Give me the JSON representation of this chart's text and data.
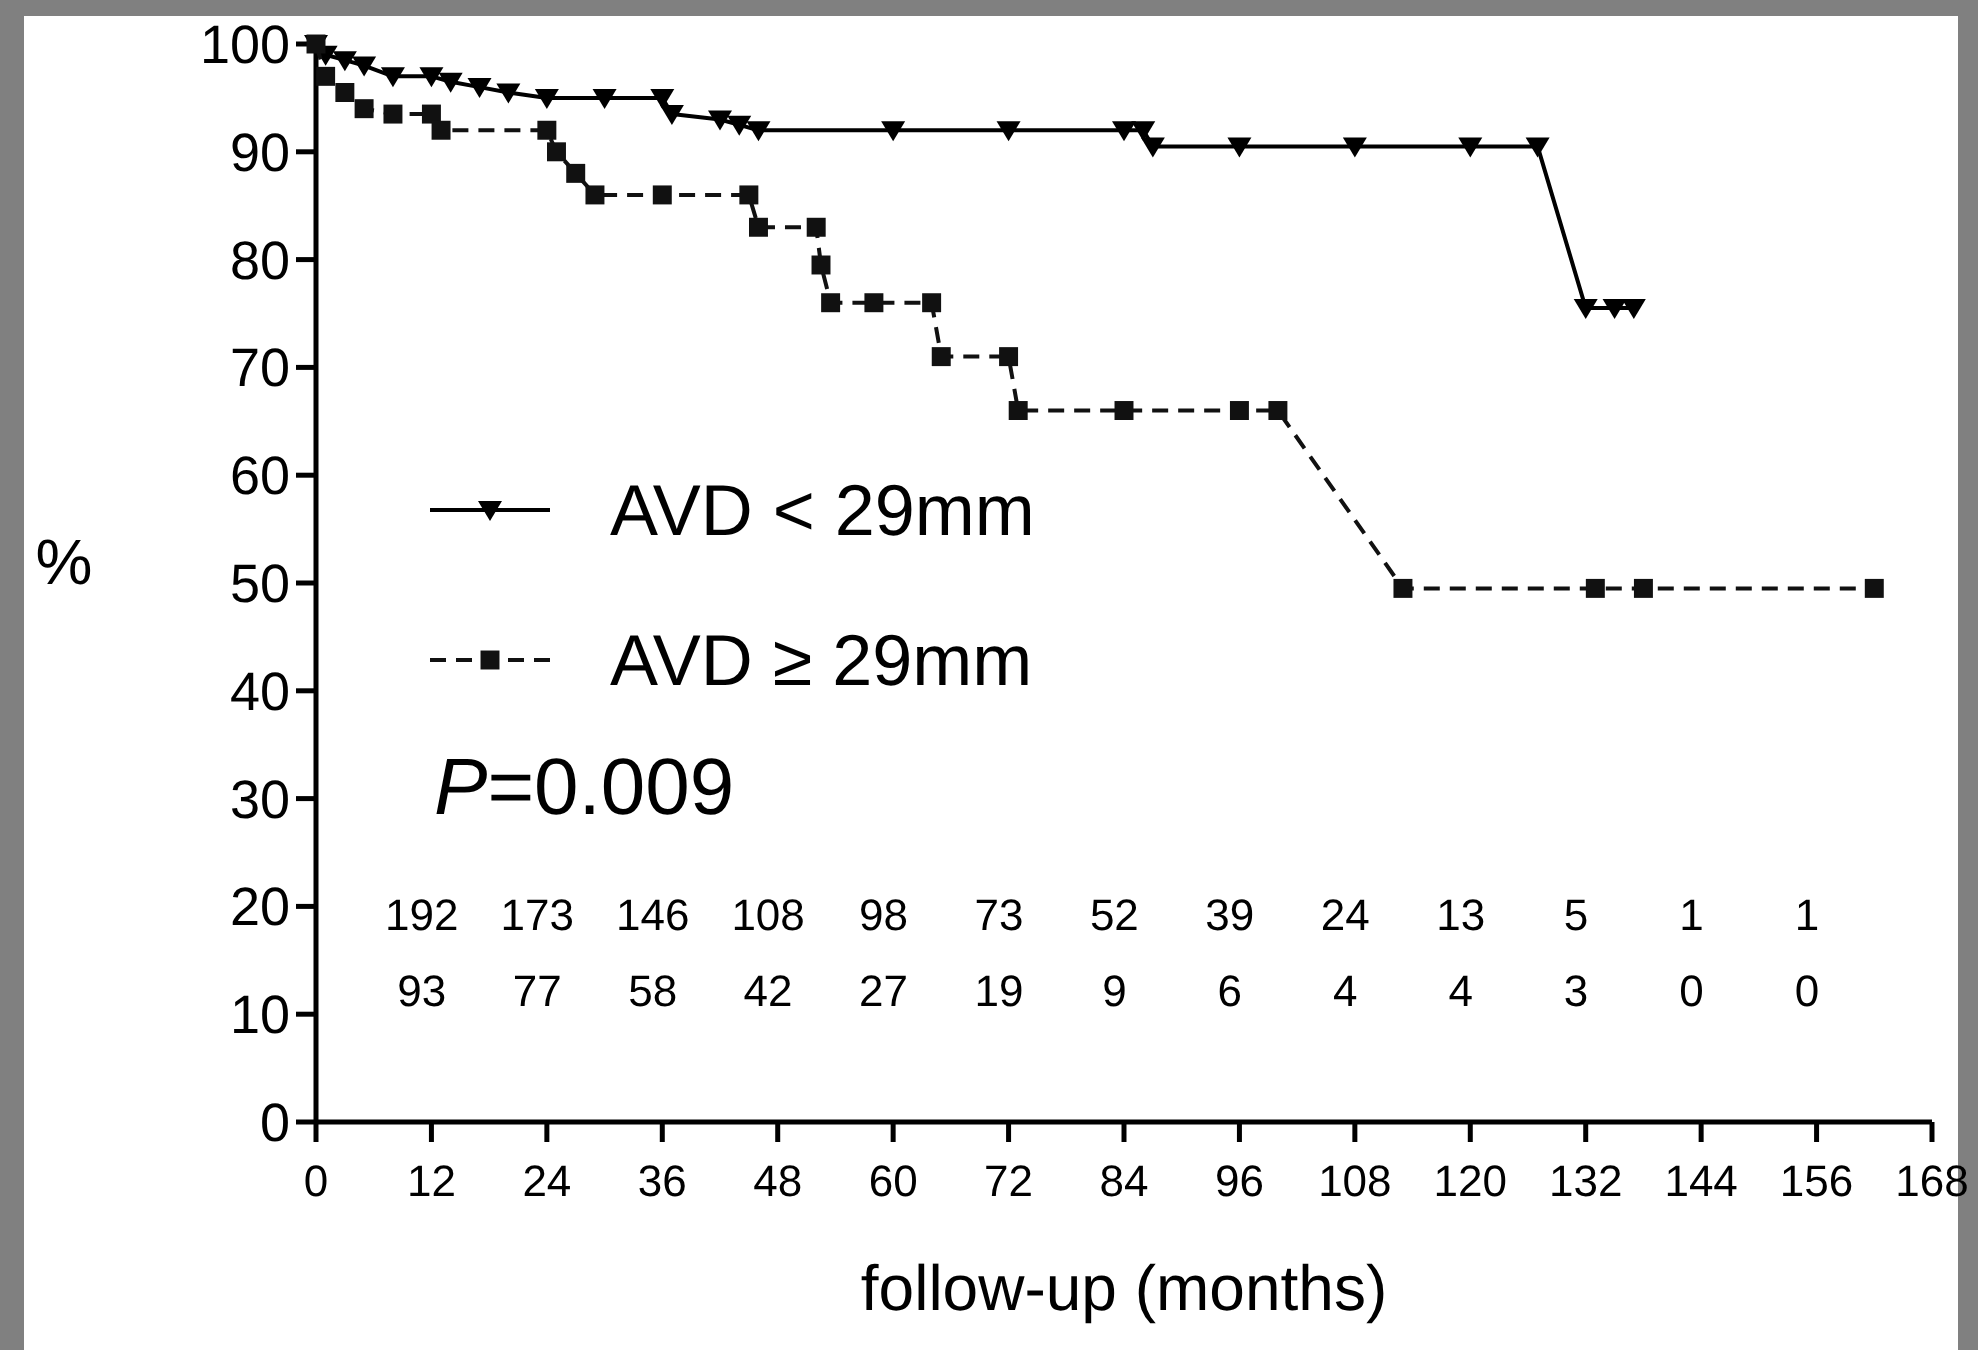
{
  "chart_data": {
    "type": "line",
    "xlabel": "follow-up (months)",
    "ylabel": "%",
    "xlim": [
      0,
      168
    ],
    "xticks": [
      0,
      12,
      24,
      36,
      48,
      60,
      72,
      84,
      96,
      108,
      120,
      132,
      144,
      156,
      168
    ],
    "ylim": [
      0,
      100
    ],
    "yticks": [
      0,
      10,
      20,
      30,
      40,
      50,
      60,
      70,
      80,
      90,
      100
    ],
    "grid": false,
    "legend": "left",
    "series": [
      {
        "name": "AVD < 29mm",
        "color": "#000000",
        "marker": "triangle",
        "line_style": "solid",
        "x": [
          0,
          1,
          3,
          5,
          8,
          12,
          14,
          17,
          20,
          24,
          30,
          36,
          37,
          42,
          44,
          46,
          60,
          72,
          84,
          86,
          87,
          96,
          108,
          120,
          127,
          132,
          135,
          137
        ],
        "values": [
          100,
          99,
          98.5,
          98,
          97,
          97,
          96.5,
          96,
          95.5,
          95,
          95,
          95,
          93.5,
          93,
          92.5,
          92,
          92,
          92,
          92,
          92,
          90.5,
          90.5,
          90.5,
          90.5,
          90.5,
          75.5,
          75.5,
          75.5
        ]
      },
      {
        "name": "AVD ≥ 29mm",
        "color": "#111111",
        "marker": "square",
        "line_style": "dashed",
        "x": [
          0,
          1,
          3,
          5,
          8,
          12,
          13,
          24,
          25,
          27,
          29,
          36,
          45,
          46,
          52,
          52.5,
          53.5,
          58,
          64,
          65,
          72,
          73,
          84,
          96,
          100,
          113,
          133,
          138,
          162
        ],
        "values": [
          100,
          97,
          95.5,
          94,
          93.5,
          93.5,
          92,
          92,
          90,
          88,
          86,
          86,
          86,
          83,
          83,
          79.5,
          76,
          76,
          76,
          71,
          71,
          66,
          66,
          66,
          66,
          49.5,
          49.5,
          49.5,
          49.5
        ]
      }
    ],
    "annotations": [
      "P=0.009",
      "192",
      "173",
      "146",
      "108",
      "98",
      "73",
      "52",
      "39",
      "24",
      "13",
      "5",
      "1",
      "1",
      "93",
      "77",
      "58",
      "42",
      "27",
      "19",
      "9",
      "6",
      "4",
      "4",
      "3",
      "0",
      "0"
    ]
  }
}
